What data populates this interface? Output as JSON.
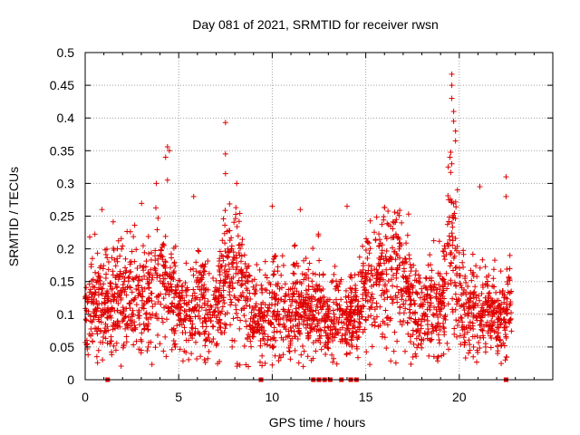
{
  "chart_data": {
    "type": "scatter",
    "title": "Day 081 of 2021, SRMTID for receiver rwsn",
    "xlabel": "GPS time / hours",
    "ylabel": "SRMTID / TECUs",
    "xlim": [
      0,
      25
    ],
    "ylim": [
      0,
      0.5
    ],
    "x_ticks": [
      0,
      5,
      10,
      15,
      20
    ],
    "x_tick_labels": [
      "0",
      "5",
      "10",
      "15",
      "20"
    ],
    "y_ticks": [
      0,
      0.05,
      0.1,
      0.15,
      0.2,
      0.25,
      0.3,
      0.35,
      0.4,
      0.45,
      0.5
    ],
    "y_tick_labels": [
      "0",
      "0.05",
      "0.1",
      "0.15",
      "0.2",
      "0.25",
      "0.3",
      "0.35",
      "0.4",
      "0.45",
      "0.5"
    ],
    "grid": true,
    "marker": "+",
    "series_color": "#e00000",
    "series": [
      {
        "name": "SRMTID",
        "points_per_hour_sample": "dense",
        "baseline_profile": [
          {
            "x": 0.0,
            "y": 0.1
          },
          {
            "x": 0.5,
            "y": 0.11
          },
          {
            "x": 1.0,
            "y": 0.12
          },
          {
            "x": 1.5,
            "y": 0.125
          },
          {
            "x": 2.0,
            "y": 0.13
          },
          {
            "x": 2.5,
            "y": 0.13
          },
          {
            "x": 3.0,
            "y": 0.12
          },
          {
            "x": 3.5,
            "y": 0.13
          },
          {
            "x": 4.0,
            "y": 0.145
          },
          {
            "x": 4.5,
            "y": 0.14
          },
          {
            "x": 5.0,
            "y": 0.1
          },
          {
            "x": 5.5,
            "y": 0.1
          },
          {
            "x": 6.0,
            "y": 0.13
          },
          {
            "x": 6.5,
            "y": 0.11
          },
          {
            "x": 7.0,
            "y": 0.1
          },
          {
            "x": 7.5,
            "y": 0.15
          },
          {
            "x": 8.0,
            "y": 0.17
          },
          {
            "x": 8.5,
            "y": 0.15
          },
          {
            "x": 9.0,
            "y": 0.1
          },
          {
            "x": 9.5,
            "y": 0.095
          },
          {
            "x": 10.0,
            "y": 0.11
          },
          {
            "x": 10.5,
            "y": 0.11
          },
          {
            "x": 11.0,
            "y": 0.1
          },
          {
            "x": 11.5,
            "y": 0.12
          },
          {
            "x": 12.0,
            "y": 0.1
          },
          {
            "x": 12.5,
            "y": 0.11
          },
          {
            "x": 13.0,
            "y": 0.09
          },
          {
            "x": 13.5,
            "y": 0.1
          },
          {
            "x": 14.0,
            "y": 0.09
          },
          {
            "x": 14.5,
            "y": 0.1
          },
          {
            "x": 15.0,
            "y": 0.13
          },
          {
            "x": 15.5,
            "y": 0.15
          },
          {
            "x": 16.0,
            "y": 0.17
          },
          {
            "x": 16.5,
            "y": 0.18
          },
          {
            "x": 17.0,
            "y": 0.15
          },
          {
            "x": 17.5,
            "y": 0.11
          },
          {
            "x": 18.0,
            "y": 0.1
          },
          {
            "x": 18.5,
            "y": 0.12
          },
          {
            "x": 19.0,
            "y": 0.1
          },
          {
            "x": 19.5,
            "y": 0.22
          },
          {
            "x": 20.0,
            "y": 0.12
          },
          {
            "x": 20.5,
            "y": 0.11
          },
          {
            "x": 21.0,
            "y": 0.1
          },
          {
            "x": 21.5,
            "y": 0.11
          },
          {
            "x": 22.0,
            "y": 0.09
          },
          {
            "x": 22.5,
            "y": 0.1
          },
          {
            "x": 22.8,
            "y": 0.11
          }
        ],
        "notable_points": [
          {
            "x": 0.9,
            "y": 0.26
          },
          {
            "x": 3.8,
            "y": 0.3
          },
          {
            "x": 4.4,
            "y": 0.356
          },
          {
            "x": 4.5,
            "y": 0.35
          },
          {
            "x": 4.3,
            "y": 0.34
          },
          {
            "x": 4.4,
            "y": 0.305
          },
          {
            "x": 5.8,
            "y": 0.28
          },
          {
            "x": 7.5,
            "y": 0.393
          },
          {
            "x": 7.5,
            "y": 0.345
          },
          {
            "x": 7.5,
            "y": 0.315
          },
          {
            "x": 8.1,
            "y": 0.3
          },
          {
            "x": 10.0,
            "y": 0.265
          },
          {
            "x": 11.5,
            "y": 0.26
          },
          {
            "x": 14.0,
            "y": 0.265
          },
          {
            "x": 16.0,
            "y": 0.263
          },
          {
            "x": 19.6,
            "y": 0.467
          },
          {
            "x": 19.6,
            "y": 0.45
          },
          {
            "x": 19.6,
            "y": 0.43
          },
          {
            "x": 19.7,
            "y": 0.41
          },
          {
            "x": 19.7,
            "y": 0.395
          },
          {
            "x": 19.8,
            "y": 0.38
          },
          {
            "x": 19.8,
            "y": 0.365
          },
          {
            "x": 19.5,
            "y": 0.34
          },
          {
            "x": 19.6,
            "y": 0.33
          },
          {
            "x": 19.9,
            "y": 0.29
          },
          {
            "x": 21.1,
            "y": 0.295
          },
          {
            "x": 22.5,
            "y": 0.31
          },
          {
            "x": 22.5,
            "y": 0.28
          }
        ],
        "x_range": [
          0,
          22.8
        ],
        "y_floor": 0.02
      }
    ],
    "zero_points": [
      1.2,
      9.4,
      12.2,
      12.5,
      12.8,
      13.1,
      13.7,
      14.2,
      14.5,
      22.5
    ]
  }
}
